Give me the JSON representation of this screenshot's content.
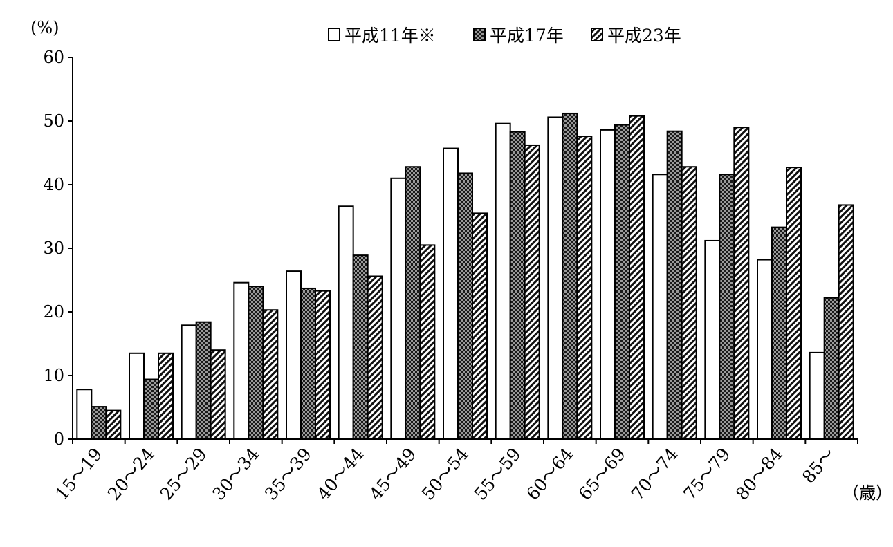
{
  "chart_data": {
    "type": "bar",
    "y_unit": "(%)",
    "x_unit": "（歳）",
    "ylim": [
      0,
      60
    ],
    "yticks": [
      0,
      10,
      20,
      30,
      40,
      50,
      60
    ],
    "grid": false,
    "legend_position": "top",
    "categories": [
      "15～19",
      "20～24",
      "25～29",
      "30～34",
      "35～39",
      "40～44",
      "45～49",
      "50～54",
      "55～59",
      "60～64",
      "65～69",
      "70～74",
      "75～79",
      "80～84",
      "85～"
    ],
    "series": [
      {
        "name": "平成11年※",
        "pattern": "white",
        "values": [
          7.8,
          13.5,
          17.9,
          24.6,
          26.4,
          36.6,
          41.0,
          45.7,
          49.6,
          50.6,
          48.6,
          41.6,
          31.2,
          28.2,
          13.6
        ]
      },
      {
        "name": "平成17年",
        "pattern": "checker",
        "values": [
          5.1,
          9.4,
          18.4,
          24.0,
          23.7,
          28.9,
          42.8,
          41.8,
          48.3,
          51.2,
          49.4,
          48.4,
          41.6,
          33.3,
          22.2
        ]
      },
      {
        "name": "平成23年",
        "pattern": "diagonal",
        "values": [
          4.5,
          13.5,
          14.0,
          20.3,
          23.3,
          25.6,
          30.5,
          35.5,
          46.2,
          47.6,
          50.8,
          42.8,
          49.0,
          42.7,
          36.8
        ]
      }
    ]
  }
}
